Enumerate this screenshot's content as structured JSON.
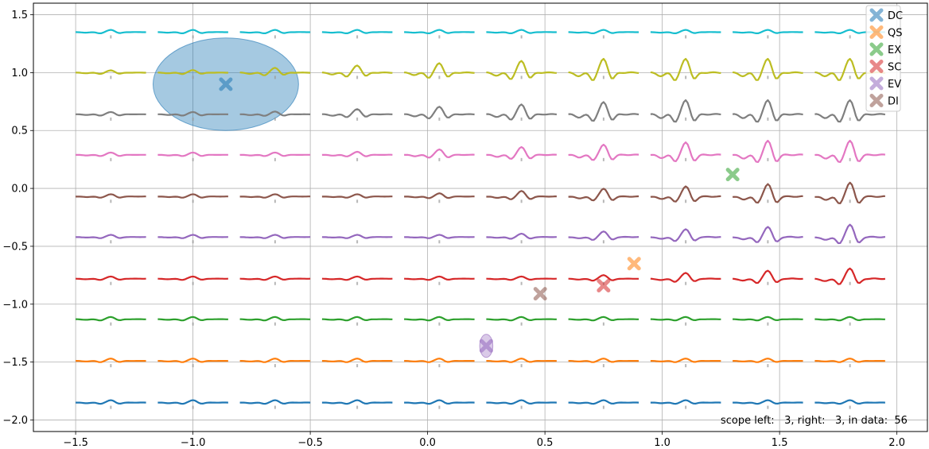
{
  "chart_data": {
    "type": "line",
    "title": "",
    "xlabel": "",
    "ylabel": "",
    "xlim": [
      -1.68,
      2.13
    ],
    "ylim": [
      -2.1,
      1.6
    ],
    "x_ticks": [
      -1.5,
      -1.0,
      -0.5,
      0.0,
      0.5,
      1.0,
      1.5,
      2.0
    ],
    "x_tick_labels": [
      "−1.5",
      "−1.0",
      "−0.5",
      "0.0",
      "0.5",
      "1.0",
      "1.5",
      "2.0"
    ],
    "y_ticks": [
      1.5,
      1.0,
      0.5,
      0.0,
      -0.5,
      -1.0,
      -1.5,
      -2.0
    ],
    "y_tick_labels": [
      "1.5",
      "1.0",
      "0.5",
      "0.0",
      "−0.5",
      "−1.0",
      "−1.5",
      "−2.0"
    ],
    "grid": true,
    "segment_starts": [
      -1.5,
      -1.15,
      -0.8,
      -0.45,
      -0.1,
      0.25,
      0.6,
      0.95,
      1.3,
      1.65
    ],
    "segment_width": 0.3,
    "series": [
      {
        "baseline": -1.85,
        "color": "#1f77b4"
      },
      {
        "baseline": -1.49,
        "color": "#ff7f0e"
      },
      {
        "baseline": -1.13,
        "color": "#2ca02c"
      },
      {
        "baseline": -0.78,
        "color": "#d62728"
      },
      {
        "baseline": -0.42,
        "color": "#9467bd"
      },
      {
        "baseline": -0.07,
        "color": "#8c564b"
      },
      {
        "baseline": 0.29,
        "color": "#e377c2"
      },
      {
        "baseline": 0.64,
        "color": "#7f7f7f"
      },
      {
        "baseline": 1.0,
        "color": "#bcbd22"
      },
      {
        "baseline": 1.35,
        "color": "#17becf"
      }
    ],
    "markers": [
      {
        "label": "DC",
        "x": -0.86,
        "y": 0.9,
        "color": "#1f77b4"
      },
      {
        "label": "QS",
        "x": 0.88,
        "y": -0.65,
        "color": "#ff7f0e"
      },
      {
        "label": "EX",
        "x": 1.3,
        "y": 0.12,
        "color": "#2ca02c"
      },
      {
        "label": "SC",
        "x": 0.75,
        "y": -0.84,
        "color": "#d62728"
      },
      {
        "label": "EV",
        "x": 0.25,
        "y": -1.36,
        "color": "#9467bd"
      },
      {
        "label": "DI",
        "x": 0.48,
        "y": -0.91,
        "color": "#8c564b"
      }
    ],
    "ellipses": [
      {
        "cx": -0.86,
        "cy": 0.9,
        "rx": 0.31,
        "ry": 0.4,
        "color": "#1f77b4",
        "opacity": 0.4
      },
      {
        "cx": 0.25,
        "cy": -1.36,
        "rx": 0.028,
        "ry": 0.1,
        "color": "#9467bd",
        "opacity": 0.35
      }
    ],
    "legend_position": "top-right"
  },
  "info": {
    "text": "scope left:   3, right:   3, in data:  56"
  }
}
